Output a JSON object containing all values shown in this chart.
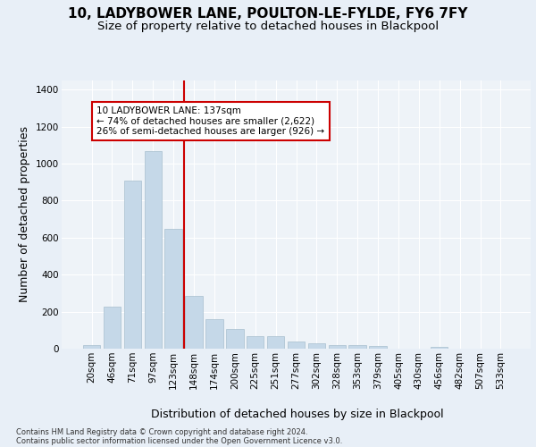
{
  "title": "10, LADYBOWER LANE, POULTON-LE-FYLDE, FY6 7FY",
  "subtitle": "Size of property relative to detached houses in Blackpool",
  "xlabel": "Distribution of detached houses by size in Blackpool",
  "ylabel": "Number of detached properties",
  "categories": [
    "20sqm",
    "46sqm",
    "71sqm",
    "97sqm",
    "123sqm",
    "148sqm",
    "174sqm",
    "200sqm",
    "225sqm",
    "251sqm",
    "277sqm",
    "302sqm",
    "328sqm",
    "353sqm",
    "379sqm",
    "405sqm",
    "430sqm",
    "456sqm",
    "482sqm",
    "507sqm",
    "533sqm"
  ],
  "values": [
    20,
    225,
    910,
    1070,
    650,
    285,
    160,
    105,
    70,
    70,
    38,
    28,
    20,
    18,
    13,
    0,
    0,
    12,
    0,
    0,
    0
  ],
  "bar_color": "#c5d8e8",
  "bar_edge_color": "#a8bfcf",
  "vline_color": "#cc0000",
  "ylim": [
    0,
    1450
  ],
  "yticks": [
    0,
    200,
    400,
    600,
    800,
    1000,
    1200,
    1400
  ],
  "annotation_text": "10 LADYBOWER LANE: 137sqm\n← 74% of detached houses are smaller (2,622)\n26% of semi-detached houses are larger (926) →",
  "annotation_box_color": "#ffffff",
  "annotation_box_edgecolor": "#cc0000",
  "footer_line1": "Contains HM Land Registry data © Crown copyright and database right 2024.",
  "footer_line2": "Contains public sector information licensed under the Open Government Licence v3.0.",
  "bg_color": "#e8eff7",
  "plot_bg_color": "#eef3f8",
  "grid_color": "#ffffff",
  "title_fontsize": 11,
  "subtitle_fontsize": 9.5,
  "tick_fontsize": 7.5,
  "ylabel_fontsize": 9,
  "xlabel_fontsize": 9,
  "footer_fontsize": 6,
  "annotation_fontsize": 7.5
}
